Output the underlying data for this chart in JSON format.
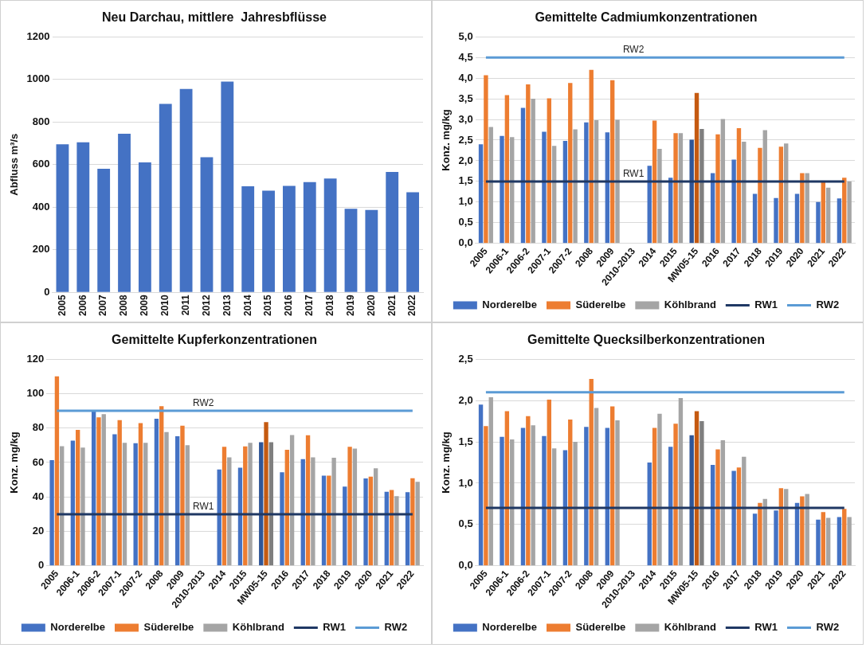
{
  "chart_data": [
    {
      "type": "bar",
      "title": "Neu Darchau, mittlere  Jahresbflüsse",
      "ylabel": "Abfluss m³/s",
      "categories": [
        "2005",
        "2006",
        "2007",
        "2008",
        "2009",
        "2010",
        "2011",
        "2012",
        "2013",
        "2014",
        "2015",
        "2016",
        "2017",
        "2018",
        "2019",
        "2020",
        "2021",
        "2022"
      ],
      "values": [
        695,
        705,
        580,
        745,
        610,
        885,
        955,
        635,
        990,
        498,
        478,
        500,
        518,
        535,
        393,
        387,
        565,
        470
      ],
      "color": "#4472c4",
      "ylim": [
        0,
        1200
      ],
      "yticks": [
        0,
        200,
        400,
        600,
        800,
        1000,
        1200
      ],
      "grid": "y"
    },
    {
      "type": "bar",
      "title": "Gemittelte Cadmiumkonzentrationen",
      "ylabel": "Konz. mg/kg",
      "categories": [
        "2005",
        "2006-1",
        "2006-2",
        "2007-1",
        "2007-2",
        "2008",
        "2009",
        "2010-2013",
        "2014",
        "2015",
        "MW05-15",
        "2016",
        "2017",
        "2018",
        "2019",
        "2020",
        "2021",
        "2022"
      ],
      "series": [
        {
          "name": "Norderelbe",
          "color": "#4472c4",
          "colors": [
            "#4472c4",
            "#4472c4",
            "#4472c4",
            "#4472c4",
            "#4472c4",
            "#4472c4",
            "#4472c4",
            "#4472c4",
            "#4472c4",
            "#4472c4",
            "#2f5597",
            "#4472c4",
            "#4472c4",
            "#4472c4",
            "#4472c4",
            "#4472c4",
            "#4472c4",
            "#4472c4"
          ],
          "values": [
            2.4,
            2.6,
            3.28,
            2.7,
            2.48,
            2.93,
            2.69,
            null,
            1.88,
            1.59,
            2.51,
            1.7,
            2.03,
            1.2,
            1.1,
            1.2,
            1.0,
            1.09
          ]
        },
        {
          "name": "Süderelbe",
          "color": "#ed7d31",
          "colors": [
            "#ed7d31",
            "#ed7d31",
            "#ed7d31",
            "#ed7d31",
            "#ed7d31",
            "#ed7d31",
            "#ed7d31",
            "#ed7d31",
            "#ed7d31",
            "#ed7d31",
            "#c55a11",
            "#ed7d31",
            "#ed7d31",
            "#ed7d31",
            "#ed7d31",
            "#ed7d31",
            "#ed7d31",
            "#ed7d31"
          ],
          "values": [
            4.07,
            3.59,
            3.85,
            3.51,
            3.88,
            4.2,
            3.95,
            null,
            2.97,
            2.67,
            3.64,
            2.64,
            2.79,
            2.31,
            2.34,
            1.7,
            1.5,
            1.59
          ]
        },
        {
          "name": "Köhlbrand",
          "color": "#a5a5a5",
          "colors": [
            "#a5a5a5",
            "#a5a5a5",
            "#a5a5a5",
            "#a5a5a5",
            "#a5a5a5",
            "#a5a5a5",
            "#a5a5a5",
            "#a5a5a5",
            "#a5a5a5",
            "#a5a5a5",
            "#7f7f7f",
            "#a5a5a5",
            "#a5a5a5",
            "#a5a5a5",
            "#a5a5a5",
            "#a5a5a5",
            "#a5a5a5",
            "#a5a5a5"
          ],
          "values": [
            2.82,
            2.57,
            3.5,
            2.36,
            2.76,
            2.98,
            2.99,
            null,
            2.29,
            2.67,
            2.77,
            3.01,
            2.46,
            2.74,
            2.42,
            1.7,
            1.35,
            1.5
          ]
        },
        {
          "name": "RW1",
          "type": "line",
          "marker": "none",
          "color": "#1f3864",
          "values": [
            1.5,
            1.5,
            1.5,
            1.5,
            1.5,
            1.5,
            1.5,
            1.5,
            1.5,
            1.5,
            1.5,
            1.5,
            1.5,
            1.5,
            1.5,
            1.5,
            1.5,
            1.5
          ]
        },
        {
          "name": "RW2",
          "type": "line",
          "marker": "none",
          "color": "#5b9bd5",
          "values": [
            4.5,
            4.5,
            4.5,
            4.5,
            4.5,
            4.5,
            4.5,
            4.5,
            4.5,
            4.5,
            4.5,
            4.5,
            4.5,
            4.5,
            4.5,
            4.5,
            4.5,
            4.5
          ]
        }
      ],
      "ylim": [
        0,
        5
      ],
      "yticks": [
        {
          "value": 0,
          "label": "0,0"
        },
        {
          "value": 0.5,
          "label": "0,5"
        },
        {
          "value": 1,
          "label": "1,0"
        },
        {
          "value": 1.5,
          "label": "1,5"
        },
        {
          "value": 2,
          "label": "2,0"
        },
        {
          "value": 2.5,
          "label": "2,5"
        },
        {
          "value": 3,
          "label": "3,0"
        },
        {
          "value": 3.5,
          "label": "3,5"
        },
        {
          "value": 4,
          "label": "4,0"
        },
        {
          "value": 4.5,
          "label": "4,5"
        },
        {
          "value": 5,
          "label": "5,0"
        }
      ],
      "annotations": [
        {
          "text": "RW2",
          "x": "2010-2013",
          "y": 4.5
        },
        {
          "text": "RW1",
          "x": "2010-2013",
          "y": 1.5
        }
      ],
      "grid": "y",
      "legend": "bottom"
    },
    {
      "type": "bar",
      "title": "Gemittelte Kupferkonzentrationen",
      "ylabel": "Konz. mg/kg",
      "categories": [
        "2005",
        "2006-1",
        "2006-2",
        "2007-1",
        "2007-2",
        "2008",
        "2009",
        "2010-2013",
        "2014",
        "2015",
        "MW05-15",
        "2016",
        "2017",
        "2018",
        "2019",
        "2020",
        "2021",
        "2022"
      ],
      "series": [
        {
          "name": "Norderelbe",
          "color": "#4472c4",
          "colors": [
            "#4472c4",
            "#4472c4",
            "#4472c4",
            "#4472c4",
            "#4472c4",
            "#4472c4",
            "#4472c4",
            "#4472c4",
            "#4472c4",
            "#4472c4",
            "#2f5597",
            "#4472c4",
            "#4472c4",
            "#4472c4",
            "#4472c4",
            "#4472c4",
            "#4472c4",
            "#4472c4"
          ],
          "values": [
            61.4,
            72.7,
            89.6,
            76.4,
            71.2,
            85.4,
            75.2,
            null,
            56,
            57,
            71.8,
            54.3,
            62,
            52.4,
            46,
            50.7,
            43,
            42.8
          ]
        },
        {
          "name": "Süderelbe",
          "color": "#ed7d31",
          "colors": [
            "#ed7d31",
            "#ed7d31",
            "#ed7d31",
            "#ed7d31",
            "#ed7d31",
            "#ed7d31",
            "#ed7d31",
            "#ed7d31",
            "#ed7d31",
            "#ed7d31",
            "#c55a11",
            "#ed7d31",
            "#ed7d31",
            "#ed7d31",
            "#ed7d31",
            "#ed7d31",
            "#ed7d31",
            "#ed7d31"
          ],
          "values": [
            110,
            78.9,
            86.2,
            84.6,
            82.9,
            92.7,
            81.4,
            null,
            69.1,
            69.3,
            83.5,
            67.4,
            75.8,
            52.4,
            69.1,
            51.8,
            44.1,
            50.9
          ]
        },
        {
          "name": "Köhlbrand",
          "color": "#a5a5a5",
          "colors": [
            "#a5a5a5",
            "#a5a5a5",
            "#a5a5a5",
            "#a5a5a5",
            "#a5a5a5",
            "#a5a5a5",
            "#a5a5a5",
            "#a5a5a5",
            "#a5a5a5",
            "#a5a5a5",
            "#7f7f7f",
            "#a5a5a5",
            "#a5a5a5",
            "#a5a5a5",
            "#a5a5a5",
            "#a5a5a5",
            "#a5a5a5",
            "#a5a5a5"
          ],
          "values": [
            69.5,
            68.7,
            88.1,
            71.4,
            71.4,
            77.7,
            70,
            null,
            63,
            71.4,
            71.8,
            76,
            63,
            62.8,
            68.1,
            56.6,
            40.5,
            48.8
          ]
        },
        {
          "name": "RW1",
          "type": "line",
          "marker": "none",
          "color": "#1f3864",
          "values": [
            30,
            30,
            30,
            30,
            30,
            30,
            30,
            30,
            30,
            30,
            30,
            30,
            30,
            30,
            30,
            30,
            30,
            30
          ]
        },
        {
          "name": "RW2",
          "type": "line",
          "marker": "none",
          "color": "#5b9bd5",
          "values": [
            90,
            90,
            90,
            90,
            90,
            90,
            90,
            90,
            90,
            90,
            90,
            90,
            90,
            90,
            90,
            90,
            90,
            90
          ]
        }
      ],
      "ylim": [
        0,
        120
      ],
      "yticks": [
        0,
        20,
        40,
        60,
        80,
        100,
        120
      ],
      "annotations": [
        {
          "text": "RW2",
          "x": "2010-2013",
          "y": 90
        },
        {
          "text": "RW1",
          "x": "2010-2013",
          "y": 30
        }
      ],
      "grid": "y",
      "legend": "bottom"
    },
    {
      "type": "bar",
      "title": "Gemittelte Quecksilberkonzentrationen",
      "ylabel": "Konz. mg/kg",
      "categories": [
        "2005",
        "2006-1",
        "2006-2",
        "2007-1",
        "2007-2",
        "2008",
        "2009",
        "2010-2013",
        "2014",
        "2015",
        "MW05-15",
        "2016",
        "2017",
        "2018",
        "2019",
        "2020",
        "2021",
        "2022"
      ],
      "series": [
        {
          "name": "Norderelbe",
          "color": "#4472c4",
          "colors": [
            "#4472c4",
            "#4472c4",
            "#4472c4",
            "#4472c4",
            "#4472c4",
            "#4472c4",
            "#4472c4",
            "#4472c4",
            "#4472c4",
            "#4472c4",
            "#2f5597",
            "#4472c4",
            "#4472c4",
            "#4472c4",
            "#4472c4",
            "#4472c4",
            "#4472c4",
            "#4472c4"
          ],
          "values": [
            1.95,
            1.56,
            1.67,
            1.57,
            1.4,
            1.68,
            1.67,
            null,
            1.25,
            1.44,
            1.58,
            1.22,
            1.15,
            0.63,
            0.67,
            0.76,
            0.56,
            0.59
          ]
        },
        {
          "name": "Süderelbe",
          "color": "#ed7d31",
          "colors": [
            "#ed7d31",
            "#ed7d31",
            "#ed7d31",
            "#ed7d31",
            "#ed7d31",
            "#ed7d31",
            "#ed7d31",
            "#ed7d31",
            "#ed7d31",
            "#ed7d31",
            "#c55a11",
            "#ed7d31",
            "#ed7d31",
            "#ed7d31",
            "#ed7d31",
            "#ed7d31",
            "#ed7d31",
            "#ed7d31"
          ],
          "values": [
            1.69,
            1.87,
            1.81,
            2.01,
            1.77,
            2.26,
            1.93,
            null,
            1.67,
            1.72,
            1.87,
            1.41,
            1.19,
            0.76,
            0.94,
            0.84,
            0.65,
            0.69
          ]
        },
        {
          "name": "Köhlbrand",
          "color": "#a5a5a5",
          "colors": [
            "#a5a5a5",
            "#a5a5a5",
            "#a5a5a5",
            "#a5a5a5",
            "#a5a5a5",
            "#a5a5a5",
            "#a5a5a5",
            "#a5a5a5",
            "#a5a5a5",
            "#a5a5a5",
            "#7f7f7f",
            "#a5a5a5",
            "#a5a5a5",
            "#a5a5a5",
            "#a5a5a5",
            "#a5a5a5",
            "#a5a5a5",
            "#a5a5a5"
          ],
          "values": [
            2.04,
            1.53,
            1.7,
            1.42,
            1.5,
            1.91,
            1.76,
            null,
            1.84,
            2.03,
            1.75,
            1.52,
            1.32,
            0.81,
            0.93,
            0.87,
            0.58,
            0.59
          ]
        },
        {
          "name": "RW1",
          "type": "line",
          "marker": "none",
          "color": "#1f3864",
          "values": [
            0.7,
            0.7,
            0.7,
            0.7,
            0.7,
            0.7,
            0.7,
            0.7,
            0.7,
            0.7,
            0.7,
            0.7,
            0.7,
            0.7,
            0.7,
            0.7,
            0.7,
            0.7
          ]
        },
        {
          "name": "RW2",
          "type": "line",
          "marker": "none",
          "color": "#5b9bd5",
          "values": [
            2.1,
            2.1,
            2.1,
            2.1,
            2.1,
            2.1,
            2.1,
            2.1,
            2.1,
            2.1,
            2.1,
            2.1,
            2.1,
            2.1,
            2.1,
            2.1,
            2.1,
            2.1
          ]
        }
      ],
      "ylim": [
        0,
        2.5
      ],
      "yticks": [
        {
          "value": 0,
          "label": "0,0"
        },
        {
          "value": 0.5,
          "label": "0,5"
        },
        {
          "value": 1,
          "label": "1,0"
        },
        {
          "value": 1.5,
          "label": "1,5"
        },
        {
          "value": 2,
          "label": "2,0"
        },
        {
          "value": 2.5,
          "label": "2,5"
        }
      ],
      "grid": "y",
      "legend": "bottom"
    }
  ]
}
